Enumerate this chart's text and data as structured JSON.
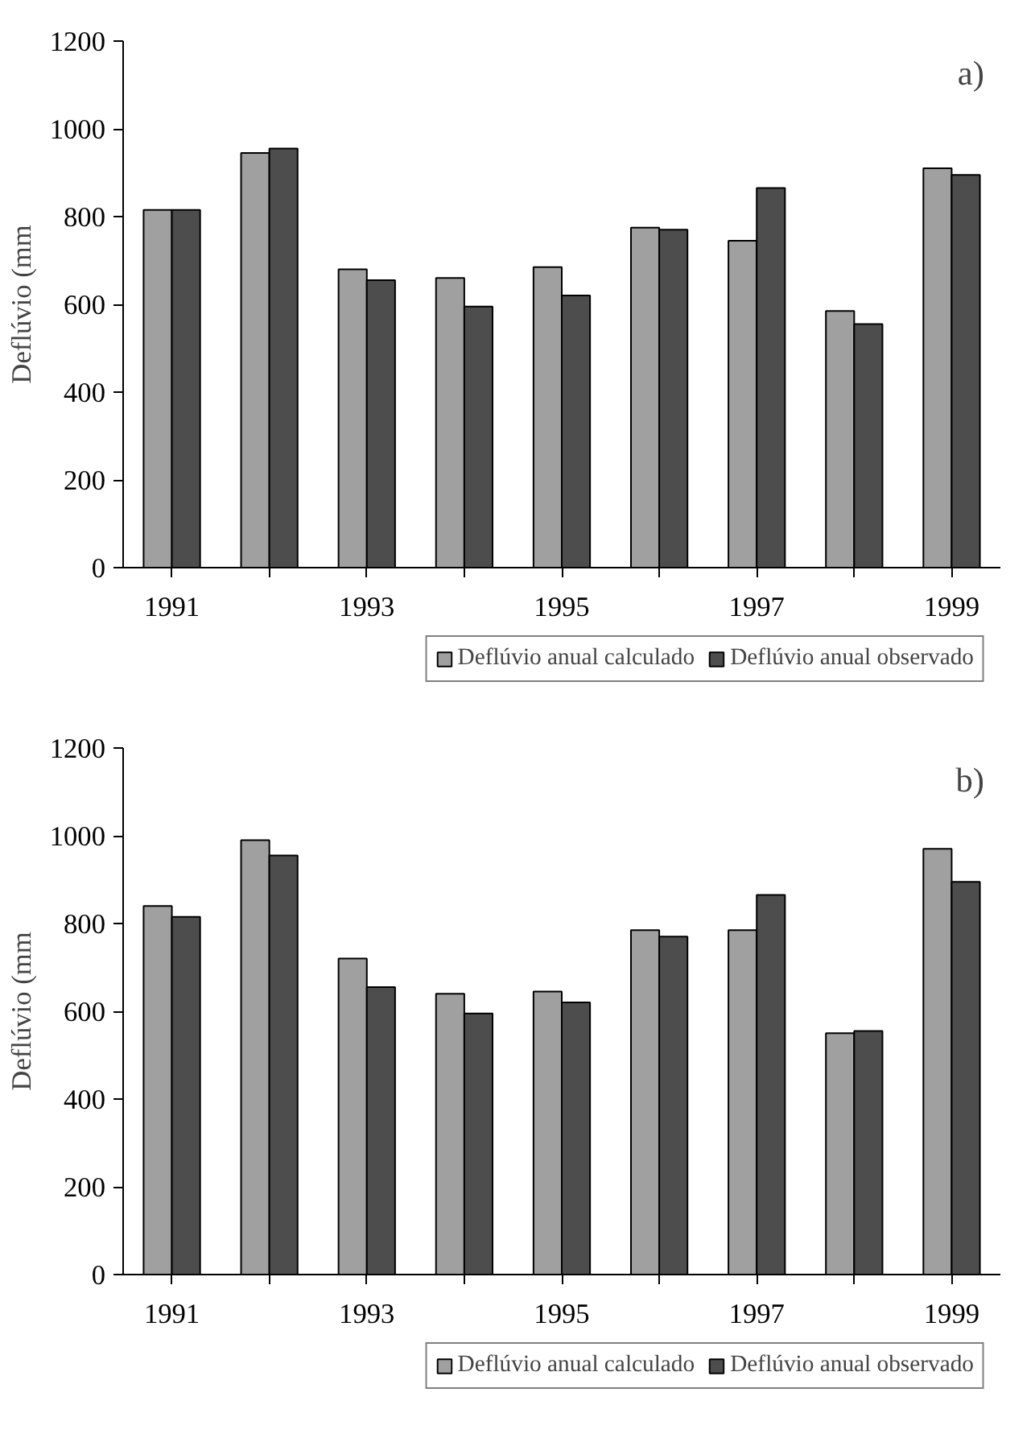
{
  "chart_data": [
    {
      "type": "bar",
      "annotations": [
        "a)"
      ],
      "ylabel": "Deflúvio (mm",
      "categories": [
        "1991",
        null,
        "1993",
        null,
        "1995",
        null,
        "1997",
        null,
        "1999"
      ],
      "ylim": [
        0,
        1200
      ],
      "yticks": [
        0,
        200,
        400,
        600,
        800,
        1000,
        1200
      ],
      "legend": "bottom",
      "series": [
        {
          "name": "Deflúvio anual calculado",
          "color": "#a0a0a0",
          "values": [
            815,
            945,
            680,
            660,
            685,
            775,
            745,
            585,
            910
          ]
        },
        {
          "name": "Deflúvio anual observado",
          "color": "#4d4d4d",
          "values": [
            815,
            955,
            655,
            595,
            620,
            770,
            865,
            555,
            895
          ]
        }
      ]
    },
    {
      "type": "bar",
      "annotations": [
        "b)"
      ],
      "ylabel": "Deflúvio (mm",
      "categories": [
        "1991",
        null,
        "1993",
        null,
        "1995",
        null,
        "1997",
        null,
        "1999"
      ],
      "ylim": [
        0,
        1200
      ],
      "yticks": [
        0,
        200,
        400,
        600,
        800,
        1000,
        1200
      ],
      "legend": "bottom",
      "series": [
        {
          "name": "Deflúvio anual calculado",
          "color": "#a0a0a0",
          "values": [
            840,
            990,
            720,
            640,
            645,
            785,
            785,
            550,
            970
          ]
        },
        {
          "name": "Deflúvio anual observado",
          "color": "#4d4d4d",
          "values": [
            815,
            955,
            655,
            595,
            620,
            770,
            865,
            555,
            895
          ]
        }
      ]
    }
  ]
}
